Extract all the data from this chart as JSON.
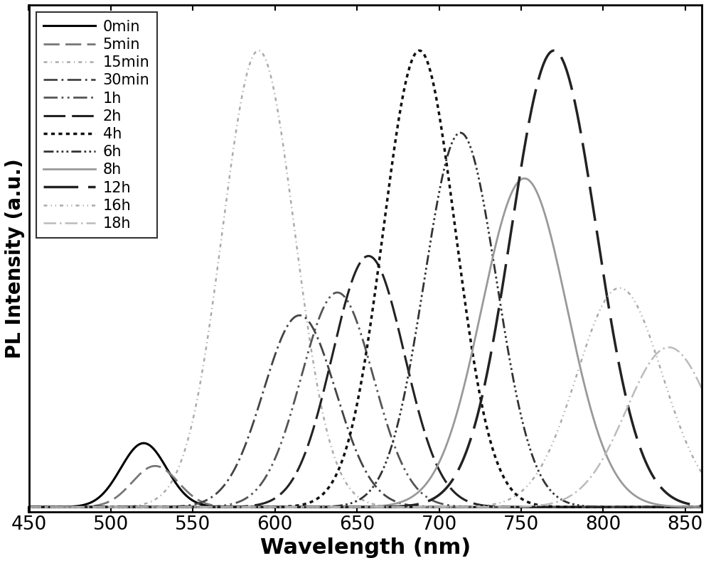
{
  "series": [
    {
      "label": "0min",
      "peak": 520,
      "sigma": 14,
      "amp": 0.14,
      "color": "#000000",
      "ls": [
        "-"
      ],
      "linewidth": 2.2,
      "dashes": null
    },
    {
      "label": "5min",
      "peak": 527,
      "sigma": 14,
      "amp": 0.09,
      "color": "#777777",
      "ls": [
        "--"
      ],
      "linewidth": 2.0,
      "dashes": [
        8,
        4
      ]
    },
    {
      "label": "15min",
      "peak": 590,
      "sigma": 22,
      "amp": 1.0,
      "color": "#aaaaaa",
      "ls": [
        "-."
      ],
      "linewidth": 1.8,
      "dashes": [
        1,
        3,
        1,
        3
      ]
    },
    {
      "label": "30min",
      "peak": 615,
      "sigma": 22,
      "amp": 0.42,
      "color": "#444444",
      "ls": [
        "-."
      ],
      "linewidth": 2.0,
      "dashes": [
        6,
        2,
        1,
        2
      ]
    },
    {
      "label": "1h",
      "peak": 638,
      "sigma": 22,
      "amp": 0.47,
      "color": "#555555",
      "ls": [
        "-."
      ],
      "linewidth": 2.0,
      "dashes": [
        6,
        2,
        1,
        2,
        1,
        2
      ]
    },
    {
      "label": "2h",
      "peak": 657,
      "sigma": 22,
      "amp": 0.55,
      "color": "#222222",
      "ls": [
        "--"
      ],
      "linewidth": 2.2,
      "dashes": [
        10,
        4
      ]
    },
    {
      "label": "4h",
      "peak": 688,
      "sigma": 22,
      "amp": 1.0,
      "color": "#111111",
      "ls": [
        ":"
      ],
      "linewidth": 2.5,
      "dashes": null
    },
    {
      "label": "6h",
      "peak": 713,
      "sigma": 22,
      "amp": 0.82,
      "color": "#333333",
      "ls": [
        "-."
      ],
      "linewidth": 2.0,
      "dashes": [
        5,
        2,
        1,
        2,
        1,
        2,
        1,
        2
      ]
    },
    {
      "label": "8h",
      "peak": 752,
      "sigma": 26,
      "amp": 0.72,
      "color": "#999999",
      "ls": [
        "-"
      ],
      "linewidth": 2.0,
      "dashes": null
    },
    {
      "label": "12h",
      "peak": 770,
      "sigma": 26,
      "amp": 1.0,
      "color": "#222222",
      "ls": [
        "--"
      ],
      "linewidth": 2.5,
      "dashes": [
        14,
        5
      ]
    },
    {
      "label": "16h",
      "peak": 810,
      "sigma": 26,
      "amp": 0.48,
      "color": "#aaaaaa",
      "ls": [
        "-."
      ],
      "linewidth": 1.8,
      "dashes": [
        1,
        3,
        1,
        3,
        1,
        3
      ]
    },
    {
      "label": "18h",
      "peak": 840,
      "sigma": 26,
      "amp": 0.35,
      "color": "#bbbbbb",
      "ls": [
        "-."
      ],
      "linewidth": 1.8,
      "dashes": [
        6,
        2,
        1,
        2
      ]
    }
  ],
  "xlim": [
    450,
    860
  ],
  "ylim": [
    -0.01,
    1.1
  ],
  "xlabel": "Wavelength (nm)",
  "ylabel": "PL Intensity (a.u.)",
  "xticks": [
    450,
    500,
    550,
    600,
    650,
    700,
    750,
    800,
    850
  ],
  "xlabel_fontsize": 22,
  "ylabel_fontsize": 20,
  "tick_fontsize": 19,
  "legend_fontsize": 15,
  "background_color": "#ffffff"
}
